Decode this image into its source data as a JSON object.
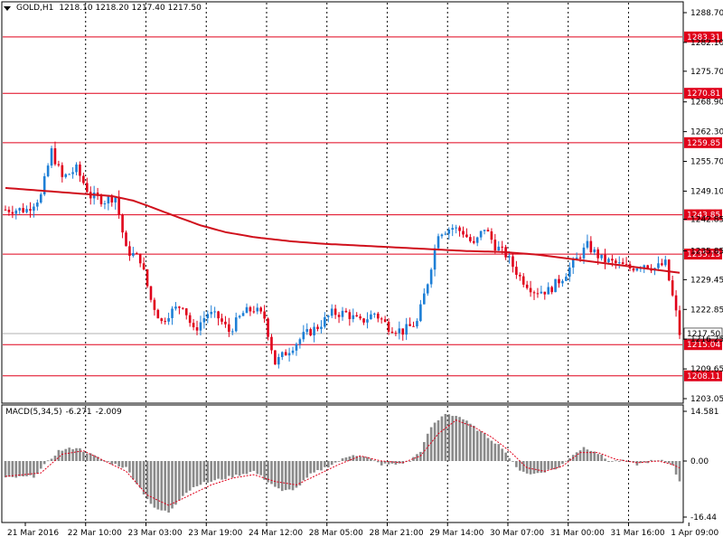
{
  "header": {
    "symbol": "GOLD,H1",
    "ohlc": "1218.10 1218.20 1217.40 1217.50"
  },
  "macd_header": {
    "label": "MACD(5,34,5)",
    "main": "-6.271",
    "signal": "-2.009"
  },
  "colors": {
    "bull": "#1e7fd6",
    "bear": "#e0001a",
    "level_line": "#e0001a",
    "ma_line": "#d0101c",
    "grid": "#000000",
    "histogram": "#8a8a8a",
    "signal_line": "#e0001a"
  },
  "chart_data": [
    {
      "type": "candlestick",
      "title": "",
      "ylim": [
        1203.05,
        1288.7
      ],
      "ytick_labels": [
        "1288.70",
        "1282.10",
        "1275.70",
        "1268.90",
        "1262.30",
        "1255.70",
        "1249.10",
        "1242.85",
        "1235.85",
        "1229.45",
        "1222.85",
        "1216.25",
        "1209.65",
        "1203.05"
      ],
      "ytick_values": [
        1288.7,
        1282.1,
        1275.7,
        1268.9,
        1262.3,
        1255.7,
        1249.1,
        1242.85,
        1235.85,
        1229.45,
        1222.85,
        1216.25,
        1209.65,
        1203.05
      ],
      "xtick_labels": [
        "21 Mar 2016",
        "22 Mar 10:00",
        "23 Mar 03:00",
        "23 Mar 19:00",
        "24 Mar 12:00",
        "28 Mar 05:00",
        "28 Mar 21:00",
        "29 Mar 14:00",
        "30 Mar 07:00",
        "31 Mar 00:00",
        "31 Mar 16:00",
        "1 Apr 09:00"
      ],
      "grid": true,
      "levels": [
        {
          "label": "1283.31",
          "value": 1283.31
        },
        {
          "label": "1270.81",
          "value": 1270.81
        },
        {
          "label": "1259.85",
          "value": 1259.85
        },
        {
          "label": "1243.85",
          "value": 1243.85
        },
        {
          "label": "1235.13",
          "value": 1235.13
        },
        {
          "label": "1215.04",
          "value": 1215.04
        },
        {
          "label": "1208.11",
          "value": 1208.11
        }
      ],
      "current_price": {
        "label": "1217.50",
        "value": 1217.5
      },
      "close_anchors": [
        [
          0,
          1245
        ],
        [
          6,
          1245
        ],
        [
          10,
          1248
        ],
        [
          13,
          1258
        ],
        [
          16,
          1252
        ],
        [
          20,
          1254
        ],
        [
          24,
          1248
        ],
        [
          28,
          1247
        ],
        [
          31,
          1248
        ],
        [
          34,
          1236
        ],
        [
          38,
          1234
        ],
        [
          41,
          1225
        ],
        [
          44,
          1220
        ],
        [
          46,
          1222
        ],
        [
          50,
          1224
        ],
        [
          53,
          1218
        ],
        [
          57,
          1222
        ],
        [
          60,
          1221
        ],
        [
          63,
          1218
        ],
        [
          67,
          1222
        ],
        [
          70,
          1223
        ],
        [
          73,
          1221
        ],
        [
          76,
          1211
        ],
        [
          80,
          1214
        ],
        [
          84,
          1217
        ],
        [
          88,
          1219
        ],
        [
          92,
          1222
        ],
        [
          96,
          1222
        ],
        [
          100,
          1220
        ],
        [
          104,
          1222
        ],
        [
          108,
          1219
        ],
        [
          112,
          1218
        ],
        [
          116,
          1220
        ],
        [
          119,
          1229
        ],
        [
          122,
          1240
        ],
        [
          126,
          1241
        ],
        [
          129,
          1240
        ],
        [
          132,
          1237
        ],
        [
          135,
          1241
        ],
        [
          138,
          1237
        ],
        [
          141,
          1235
        ],
        [
          145,
          1230
        ],
        [
          149,
          1227
        ],
        [
          153,
          1227
        ],
        [
          157,
          1230
        ],
        [
          161,
          1234
        ],
        [
          164,
          1237
        ],
        [
          168,
          1234
        ],
        [
          172,
          1233
        ],
        [
          176,
          1232
        ],
        [
          180,
          1233
        ],
        [
          183,
          1232
        ],
        [
          186,
          1233
        ],
        [
          189,
          1222
        ],
        [
          190,
          1217.5
        ]
      ],
      "ma_anchors": [
        [
          0,
          1249.8
        ],
        [
          10,
          1249.2
        ],
        [
          20,
          1248.6
        ],
        [
          30,
          1248
        ],
        [
          36,
          1247
        ],
        [
          42,
          1245.3
        ],
        [
          48,
          1243.5
        ],
        [
          55,
          1241.5
        ],
        [
          62,
          1240
        ],
        [
          70,
          1238.9
        ],
        [
          80,
          1238
        ],
        [
          90,
          1237.4
        ],
        [
          100,
          1237
        ],
        [
          110,
          1236.6
        ],
        [
          120,
          1236.2
        ],
        [
          130,
          1235.8
        ],
        [
          140,
          1235.6
        ],
        [
          150,
          1235
        ],
        [
          160,
          1234
        ],
        [
          170,
          1233
        ],
        [
          180,
          1232
        ],
        [
          190,
          1231
        ]
      ]
    },
    {
      "type": "bar",
      "title": "",
      "ylim": [
        -16.44,
        14.581
      ],
      "ytick_labels": [
        "14.581",
        "0.00",
        "-16.44"
      ],
      "ytick_values": [
        14.581,
        0,
        -16.44
      ],
      "hist_anchors": [
        [
          0,
          -5
        ],
        [
          8,
          -4.5
        ],
        [
          15,
          3
        ],
        [
          20,
          4
        ],
        [
          24,
          2
        ],
        [
          28,
          0
        ],
        [
          31,
          -1
        ],
        [
          34,
          -2
        ],
        [
          38,
          -8
        ],
        [
          42,
          -14
        ],
        [
          46,
          -15
        ],
        [
          50,
          -10
        ],
        [
          54,
          -7
        ],
        [
          58,
          -6
        ],
        [
          62,
          -5
        ],
        [
          66,
          -4
        ],
        [
          70,
          -3
        ],
        [
          74,
          -6
        ],
        [
          78,
          -9
        ],
        [
          82,
          -8
        ],
        [
          86,
          -4
        ],
        [
          90,
          -2
        ],
        [
          94,
          0
        ],
        [
          98,
          2
        ],
        [
          102,
          1
        ],
        [
          106,
          -1
        ],
        [
          110,
          -1
        ],
        [
          114,
          0
        ],
        [
          117,
          3
        ],
        [
          120,
          10
        ],
        [
          124,
          14
        ],
        [
          128,
          13
        ],
        [
          132,
          10
        ],
        [
          136,
          7
        ],
        [
          140,
          4
        ],
        [
          144,
          -2
        ],
        [
          148,
          -4
        ],
        [
          152,
          -3
        ],
        [
          156,
          -2
        ],
        [
          160,
          2
        ],
        [
          163,
          4
        ],
        [
          166,
          3
        ],
        [
          170,
          0
        ],
        [
          174,
          0
        ],
        [
          178,
          -1
        ],
        [
          182,
          0
        ],
        [
          185,
          0
        ],
        [
          188,
          -1
        ],
        [
          190,
          -6.271
        ]
      ],
      "signal_anchors": [
        [
          0,
          -4.5
        ],
        [
          10,
          -3.5
        ],
        [
          16,
          2
        ],
        [
          22,
          3
        ],
        [
          28,
          0
        ],
        [
          34,
          -3
        ],
        [
          40,
          -10
        ],
        [
          46,
          -13
        ],
        [
          52,
          -10
        ],
        [
          58,
          -7
        ],
        [
          64,
          -5
        ],
        [
          70,
          -4
        ],
        [
          76,
          -6
        ],
        [
          82,
          -7
        ],
        [
          88,
          -4
        ],
        [
          94,
          -1
        ],
        [
          100,
          1.5
        ],
        [
          106,
          0
        ],
        [
          112,
          -0.5
        ],
        [
          117,
          1.5
        ],
        [
          122,
          8
        ],
        [
          127,
          12
        ],
        [
          132,
          10
        ],
        [
          137,
          7
        ],
        [
          142,
          3
        ],
        [
          147,
          -2
        ],
        [
          152,
          -3
        ],
        [
          157,
          -1.5
        ],
        [
          162,
          2.5
        ],
        [
          167,
          2.5
        ],
        [
          172,
          0.5
        ],
        [
          178,
          -0.5
        ],
        [
          184,
          0
        ],
        [
          188,
          -1
        ],
        [
          190,
          -2.009
        ]
      ]
    }
  ]
}
